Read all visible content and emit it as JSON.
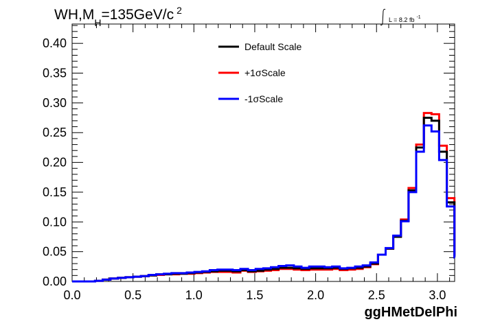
{
  "chart_data": {
    "type": "line",
    "title_main": "WH,M",
    "title_sub": "H",
    "title_rest": "=135GeV/c",
    "title_sup": "2",
    "lumi_label": "L = 8.2 fb",
    "lumi_sup": "-1",
    "xlabel": "ggHMetDelPhi",
    "ylabel": "",
    "xlim": [
      0.0,
      3.1416
    ],
    "ylim": [
      0.0,
      0.4325
    ],
    "x_ticks": [
      "0.0",
      "0.5",
      "1.0",
      "1.5",
      "2.0",
      "2.5",
      "3.0"
    ],
    "x_tick_values": [
      0.0,
      0.5,
      1.0,
      1.5,
      2.0,
      2.5,
      3.0
    ],
    "y_ticks": [
      "0.00",
      "0.05",
      "0.10",
      "0.15",
      "0.20",
      "0.25",
      "0.30",
      "0.35",
      "0.40"
    ],
    "y_tick_values": [
      0.0,
      0.05,
      0.1,
      0.15,
      0.2,
      0.25,
      0.3,
      0.35,
      0.4
    ],
    "grid": false,
    "legend_position": "top-center",
    "bin_edges_start": 0.0,
    "bin_width": 0.0628,
    "series": [
      {
        "name": "Default Scale",
        "color": "#000000",
        "values": [
          0.0,
          0.0,
          0.0,
          0.001,
          0.003,
          0.005,
          0.006,
          0.007,
          0.008,
          0.009,
          0.01,
          0.012,
          0.012,
          0.013,
          0.013,
          0.014,
          0.015,
          0.016,
          0.017,
          0.018,
          0.018,
          0.017,
          0.019,
          0.017,
          0.018,
          0.02,
          0.021,
          0.023,
          0.023,
          0.022,
          0.021,
          0.022,
          0.022,
          0.022,
          0.023,
          0.021,
          0.022,
          0.023,
          0.025,
          0.03,
          0.045,
          0.055,
          0.075,
          0.102,
          0.153,
          0.225,
          0.275,
          0.27,
          0.218,
          0.133,
          0.042
        ]
      },
      {
        "name": "+1σScale",
        "color": "#ff0000",
        "values": [
          0.0,
          0.0,
          0.0,
          0.001,
          0.003,
          0.005,
          0.006,
          0.007,
          0.008,
          0.009,
          0.01,
          0.011,
          0.012,
          0.012,
          0.013,
          0.013,
          0.014,
          0.015,
          0.016,
          0.016,
          0.016,
          0.015,
          0.018,
          0.016,
          0.017,
          0.018,
          0.019,
          0.021,
          0.021,
          0.02,
          0.019,
          0.02,
          0.02,
          0.02,
          0.021,
          0.019,
          0.02,
          0.021,
          0.024,
          0.029,
          0.045,
          0.055,
          0.076,
          0.104,
          0.157,
          0.23,
          0.283,
          0.281,
          0.228,
          0.14,
          0.044
        ]
      },
      {
        "name": "-1σScale",
        "color": "#0000ff",
        "values": [
          0.0,
          0.0,
          0.0,
          0.001,
          0.003,
          0.005,
          0.006,
          0.007,
          0.008,
          0.009,
          0.011,
          0.012,
          0.013,
          0.014,
          0.014,
          0.015,
          0.016,
          0.017,
          0.019,
          0.02,
          0.02,
          0.019,
          0.021,
          0.019,
          0.021,
          0.022,
          0.024,
          0.026,
          0.027,
          0.025,
          0.023,
          0.025,
          0.025,
          0.024,
          0.025,
          0.022,
          0.023,
          0.025,
          0.027,
          0.032,
          0.045,
          0.056,
          0.077,
          0.101,
          0.15,
          0.218,
          0.262,
          0.252,
          0.204,
          0.126,
          0.04
        ]
      }
    ]
  }
}
